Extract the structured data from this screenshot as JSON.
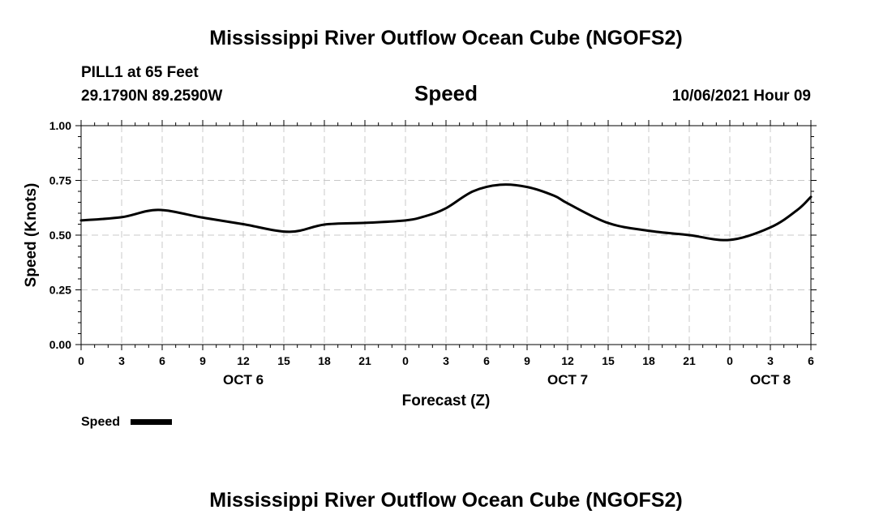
{
  "header": {
    "title": "Mississippi River Outflow Ocean Cube (NGOFS2)",
    "station": "PILL1 at 65 Feet",
    "coords": "29.1790N  89.2590W",
    "chart_title": "Speed",
    "datetime": "10/06/2021 Hour 09"
  },
  "footer": {
    "title": "Mississippi River Outflow Ocean Cube (NGOFS2)"
  },
  "chart_data": {
    "type": "line",
    "title": "Speed",
    "xlabel": "Forecast (Z)",
    "ylabel": "Speed (Knots)",
    "xlim": [
      0,
      54
    ],
    "ylim": [
      0,
      1
    ],
    "y_ticks": [
      "0.00",
      "0.25",
      "0.50",
      "0.75",
      "1.00"
    ],
    "y_tick_values": [
      0,
      0.25,
      0.5,
      0.75,
      1.0
    ],
    "x_ticks": [
      "0",
      "3",
      "6",
      "9",
      "12",
      "15",
      "18",
      "21",
      "0",
      "3",
      "6",
      "9",
      "12",
      "15",
      "18",
      "21",
      "0",
      "3",
      "6"
    ],
    "day_labels": [
      {
        "label": "OCT 6",
        "x": 12
      },
      {
        "label": "OCT 7",
        "x": 36
      },
      {
        "label": "OCT 8",
        "x": 51
      }
    ],
    "grid": true,
    "legend_position": "bottom-left",
    "series": [
      {
        "name": "Speed",
        "color": "#000000",
        "x": [
          0,
          3,
          5.7,
          9,
          12,
          15.4,
          18,
          21,
          24,
          25.5,
          27,
          29,
          31,
          33,
          35,
          36,
          39,
          42,
          45,
          48,
          51,
          53,
          54
        ],
        "y": [
          0.567,
          0.582,
          0.615,
          0.58,
          0.55,
          0.515,
          0.548,
          0.556,
          0.567,
          0.587,
          0.623,
          0.7,
          0.73,
          0.72,
          0.68,
          0.645,
          0.555,
          0.52,
          0.5,
          0.478,
          0.535,
          0.615,
          0.675
        ]
      }
    ]
  }
}
